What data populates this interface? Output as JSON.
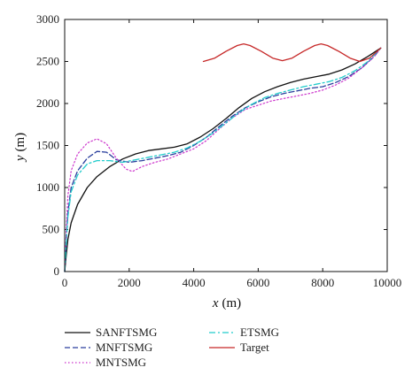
{
  "chart_data": {
    "type": "line",
    "title": "",
    "xlabel": {
      "var": "x",
      "unit": "(m)"
    },
    "ylabel": {
      "var": "y",
      "unit": "(m)"
    },
    "xlim": [
      0,
      10000
    ],
    "ylim": [
      0,
      3000
    ],
    "xticks": [
      0,
      2000,
      4000,
      6000,
      8000,
      10000
    ],
    "yticks": [
      0,
      500,
      1000,
      1500,
      2000,
      2500,
      3000
    ],
    "grid": false,
    "legend_position": "below",
    "series": [
      {
        "name": "SANFTSMG",
        "color": "#111111",
        "dash": "solid",
        "x": [
          0,
          50,
          100,
          200,
          400,
          700,
          1000,
          1400,
          1800,
          2200,
          2600,
          3000,
          3400,
          3800,
          4200,
          4600,
          5000,
          5400,
          5800,
          6200,
          6600,
          7000,
          7400,
          7800,
          8200,
          8600,
          9000,
          9400,
          9800
        ],
        "y": [
          0,
          200,
          380,
          580,
          800,
          1000,
          1130,
          1250,
          1340,
          1400,
          1440,
          1460,
          1480,
          1520,
          1600,
          1700,
          1820,
          1950,
          2060,
          2140,
          2200,
          2250,
          2290,
          2320,
          2350,
          2400,
          2470,
          2560,
          2660
        ]
      },
      {
        "name": "MNFTSMG",
        "color": "#2a3f9d",
        "dash": "long",
        "x": [
          0,
          50,
          100,
          200,
          400,
          700,
          1000,
          1300,
          1600,
          2000,
          2400,
          2800,
          3200,
          3600,
          4000,
          4400,
          4800,
          5200,
          5600,
          6000,
          6400,
          6800,
          7200,
          7600,
          8000,
          8400,
          8800,
          9200,
          9600,
          9800
        ],
        "y": [
          0,
          400,
          700,
          1000,
          1200,
          1350,
          1430,
          1420,
          1330,
          1300,
          1320,
          1350,
          1380,
          1420,
          1500,
          1600,
          1730,
          1850,
          1950,
          2020,
          2080,
          2120,
          2150,
          2180,
          2200,
          2250,
          2320,
          2420,
          2560,
          2660
        ]
      },
      {
        "name": "MNTSMG",
        "color": "#cc33cc",
        "dash": "dot",
        "x": [
          0,
          50,
          100,
          200,
          400,
          700,
          1000,
          1300,
          1600,
          1900,
          2100,
          2400,
          2800,
          3200,
          3600,
          4000,
          4400,
          4800,
          5200,
          5600,
          6000,
          6400,
          6800,
          7200,
          7600,
          8000,
          8400,
          8800,
          9200,
          9600,
          9800
        ],
        "y": [
          0,
          500,
          900,
          1200,
          1400,
          1530,
          1580,
          1520,
          1350,
          1220,
          1190,
          1250,
          1300,
          1340,
          1400,
          1460,
          1560,
          1700,
          1830,
          1930,
          1980,
          2030,
          2060,
          2090,
          2120,
          2160,
          2220,
          2300,
          2420,
          2560,
          2660
        ]
      },
      {
        "name": "ETSMG",
        "color": "#22cccc",
        "dash": "dashdot",
        "x": [
          0,
          50,
          100,
          200,
          400,
          700,
          1000,
          1400,
          1800,
          2200,
          2600,
          3000,
          3400,
          3800,
          4200,
          4600,
          5000,
          5400,
          5800,
          6200,
          6600,
          7000,
          7400,
          7800,
          8200,
          8600,
          9000,
          9400,
          9800
        ],
        "y": [
          0,
          350,
          650,
          950,
          1150,
          1280,
          1320,
          1320,
          1300,
          1330,
          1360,
          1390,
          1420,
          1470,
          1550,
          1650,
          1770,
          1890,
          1990,
          2070,
          2120,
          2160,
          2200,
          2230,
          2260,
          2310,
          2390,
          2500,
          2660
        ]
      },
      {
        "name": "Target",
        "color": "#c62828",
        "dash": "solid",
        "x": [
          4300,
          4650,
          5000,
          5350,
          5550,
          5750,
          6100,
          6450,
          6750,
          7050,
          7400,
          7750,
          7950,
          8150,
          8500,
          8850,
          9150,
          9450,
          9800
        ],
        "y": [
          2500,
          2540,
          2620,
          2690,
          2710,
          2690,
          2620,
          2540,
          2510,
          2540,
          2620,
          2690,
          2710,
          2690,
          2620,
          2540,
          2500,
          2540,
          2660
        ]
      }
    ]
  }
}
